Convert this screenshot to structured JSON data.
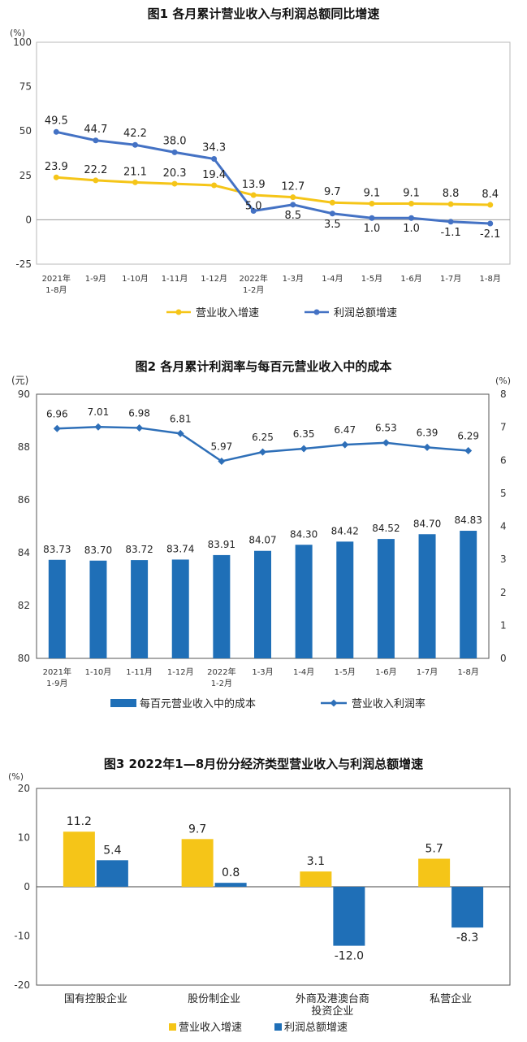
{
  "charts": [
    {
      "chart_data": {
        "type": "line",
        "title": "图1  各月累计营业收入与利润总额同比增速",
        "unit": "(%)",
        "categories": [
          [
            "2021年",
            "1-8月"
          ],
          [
            "1-9月"
          ],
          [
            "1-10月"
          ],
          [
            "1-11月"
          ],
          [
            "1-12月"
          ],
          [
            "2022年",
            "1-2月"
          ],
          [
            "1-3月"
          ],
          [
            "1-4月"
          ],
          [
            "1-5月"
          ],
          [
            "1-6月"
          ],
          [
            "1-7月"
          ],
          [
            "1-8月"
          ]
        ],
        "ylim": [
          -25,
          100
        ],
        "yticks": [
          "100",
          "75",
          "50",
          "25",
          "0",
          "-25"
        ],
        "series": [
          {
            "name": "营业收入增速",
            "color": "#F5C518",
            "values": [
              23.9,
              22.2,
              21.1,
              20.3,
              19.4,
              13.9,
              12.7,
              9.7,
              9.1,
              9.1,
              8.8,
              8.4
            ],
            "labels": [
              "23.9",
              "22.2",
              "21.1",
              "20.3",
              "19.4",
              "13.9",
              "12.7",
              "9.7",
              "9.1",
              "9.1",
              "8.8",
              "8.4"
            ]
          },
          {
            "name": "利润总额增速",
            "color": "#4472C4",
            "values": [
              49.5,
              44.7,
              42.2,
              38.0,
              34.3,
              5.0,
              8.5,
              3.5,
              1.0,
              1.0,
              -1.1,
              -2.1
            ],
            "labels": [
              "49.5",
              "44.7",
              "42.2",
              "38.0",
              "34.3",
              "5.0",
              "8.5",
              "3.5",
              "1.0",
              "1.0",
              "-1.1",
              "-2.1"
            ]
          }
        ],
        "grid": false,
        "legend": "bottom"
      }
    },
    {
      "chart_data": {
        "type": "bar",
        "title": "图2  各月累计利润率与每百元营业收入中的成本",
        "left_unit": "(元)",
        "right_unit": "(%)",
        "categories": [
          [
            "2021年",
            "1-9月"
          ],
          [
            "1-10月"
          ],
          [
            "1-11月"
          ],
          [
            "1-12月"
          ],
          [
            "2022年",
            "1-2月"
          ],
          [
            "1-3月"
          ],
          [
            "1-4月"
          ],
          [
            "1-5月"
          ],
          [
            "1-6月"
          ],
          [
            "1-7月"
          ],
          [
            "1-8月"
          ]
        ],
        "ylim_left": [
          80,
          90
        ],
        "yticks_left": [
          "90",
          "88",
          "86",
          "84",
          "82",
          "80"
        ],
        "ylim_right": [
          0,
          8
        ],
        "yticks_right": [
          "8",
          "7",
          "6",
          "5",
          "4",
          "3",
          "2",
          "1",
          "0"
        ],
        "series": [
          {
            "name": "每百元营业收入中的成本",
            "kind": "bar",
            "axis": "left",
            "color": "#1F6FB7",
            "values": [
              83.73,
              83.7,
              83.72,
              83.74,
              83.91,
              84.07,
              84.3,
              84.42,
              84.52,
              84.7,
              84.83
            ],
            "labels": [
              "83.73",
              "83.70",
              "83.72",
              "83.74",
              "83.91",
              "84.07",
              "84.30",
              "84.42",
              "84.52",
              "84.70",
              "84.83"
            ]
          },
          {
            "name": "营业收入利润率",
            "kind": "line",
            "axis": "right",
            "color": "#2E6FB8",
            "values": [
              6.96,
              7.01,
              6.98,
              6.81,
              5.97,
              6.25,
              6.35,
              6.47,
              6.53,
              6.39,
              6.29
            ],
            "labels": [
              "6.96",
              "7.01",
              "6.98",
              "6.81",
              "5.97",
              "6.25",
              "6.35",
              "6.47",
              "6.53",
              "6.39",
              "6.29"
            ]
          }
        ],
        "grid": false,
        "legend": "bottom"
      }
    },
    {
      "chart_data": {
        "type": "bar",
        "title": "图3  2022年1—8月份分经济类型营业收入与利润总额增速",
        "unit": "(%)",
        "categories": [
          [
            "国有控股企业"
          ],
          [
            "股份制企业"
          ],
          [
            "外商及港澳台商",
            "投资企业"
          ],
          [
            "私营企业"
          ]
        ],
        "ylim": [
          -20,
          20
        ],
        "yticks": [
          "20",
          "10",
          "0",
          "-10",
          "-20"
        ],
        "series": [
          {
            "name": "营业收入增速",
            "color": "#F5C518",
            "values": [
              11.2,
              9.7,
              3.1,
              5.7
            ],
            "labels": [
              "11.2",
              "9.7",
              "3.1",
              "5.7"
            ]
          },
          {
            "name": "利润总额增速",
            "color": "#1F6FB7",
            "values": [
              5.4,
              0.8,
              -12.0,
              -8.3
            ],
            "labels": [
              "5.4",
              "0.8",
              "-12.0",
              "-8.3"
            ]
          }
        ],
        "grid": false,
        "legend": "bottom"
      }
    }
  ]
}
